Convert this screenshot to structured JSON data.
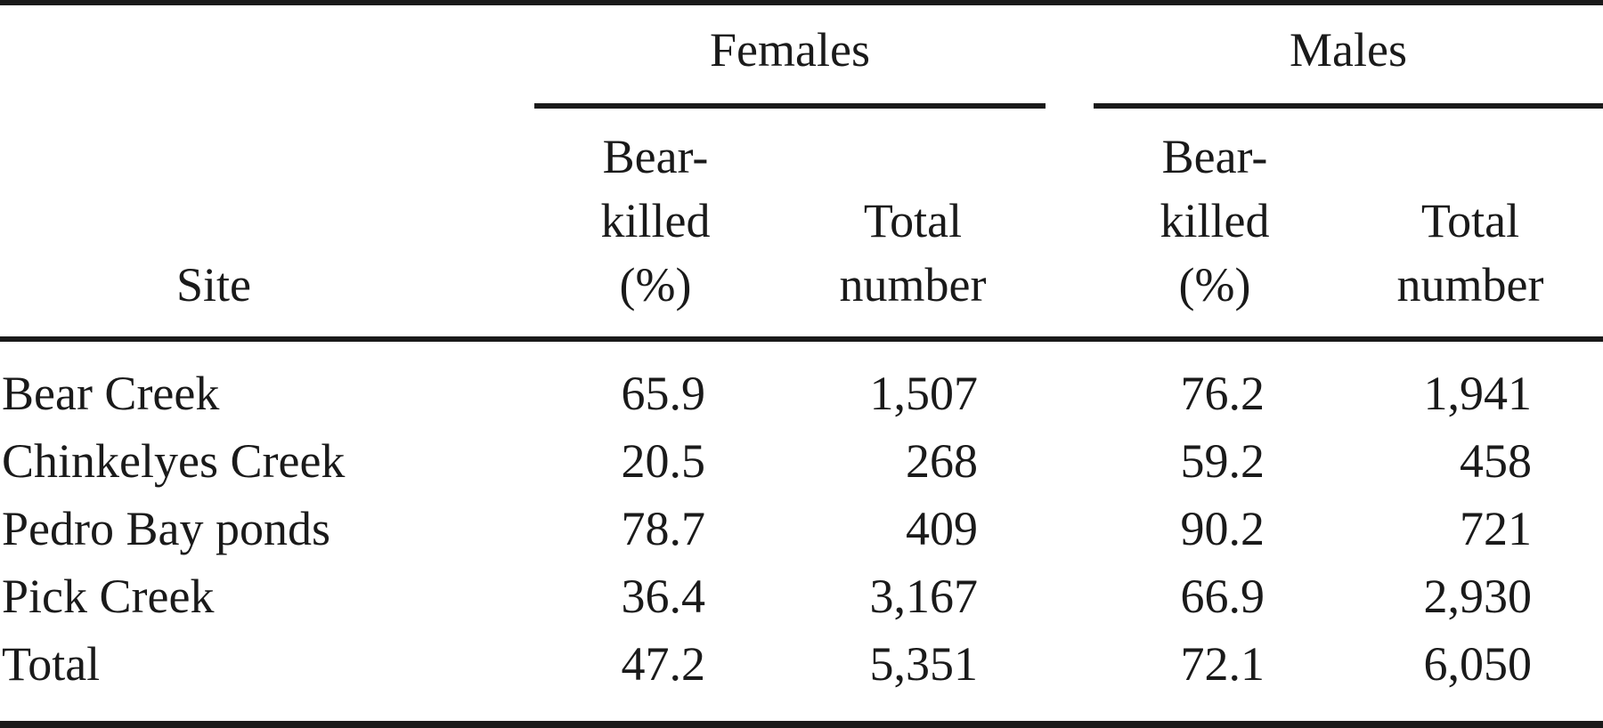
{
  "table": {
    "group_headers": {
      "females": "Females",
      "males": "Males"
    },
    "column_headers": {
      "site": "Site",
      "bear_killed_line1": "Bear-",
      "bear_killed_line2": "killed",
      "bear_killed_line3": "(%)",
      "total_line1": "Total",
      "total_line2": "number"
    },
    "rows": [
      {
        "site": "Bear Creek",
        "f_bear_killed": "65.9",
        "f_total": "1,507",
        "m_bear_killed": "76.2",
        "m_total": "1,941"
      },
      {
        "site": "Chinkelyes Creek",
        "f_bear_killed": "20.5",
        "f_total": "268",
        "m_bear_killed": "59.2",
        "m_total": "458"
      },
      {
        "site": "Pedro Bay ponds",
        "f_bear_killed": "78.7",
        "f_total": "409",
        "m_bear_killed": "90.2",
        "m_total": "721"
      },
      {
        "site": "Pick Creek",
        "f_bear_killed": "36.4",
        "f_total": "3,167",
        "m_bear_killed": "66.9",
        "m_total": "2,930"
      },
      {
        "site": "Total",
        "f_bear_killed": "47.2",
        "f_total": "5,351",
        "m_bear_killed": "72.1",
        "m_total": "6,050"
      }
    ]
  }
}
